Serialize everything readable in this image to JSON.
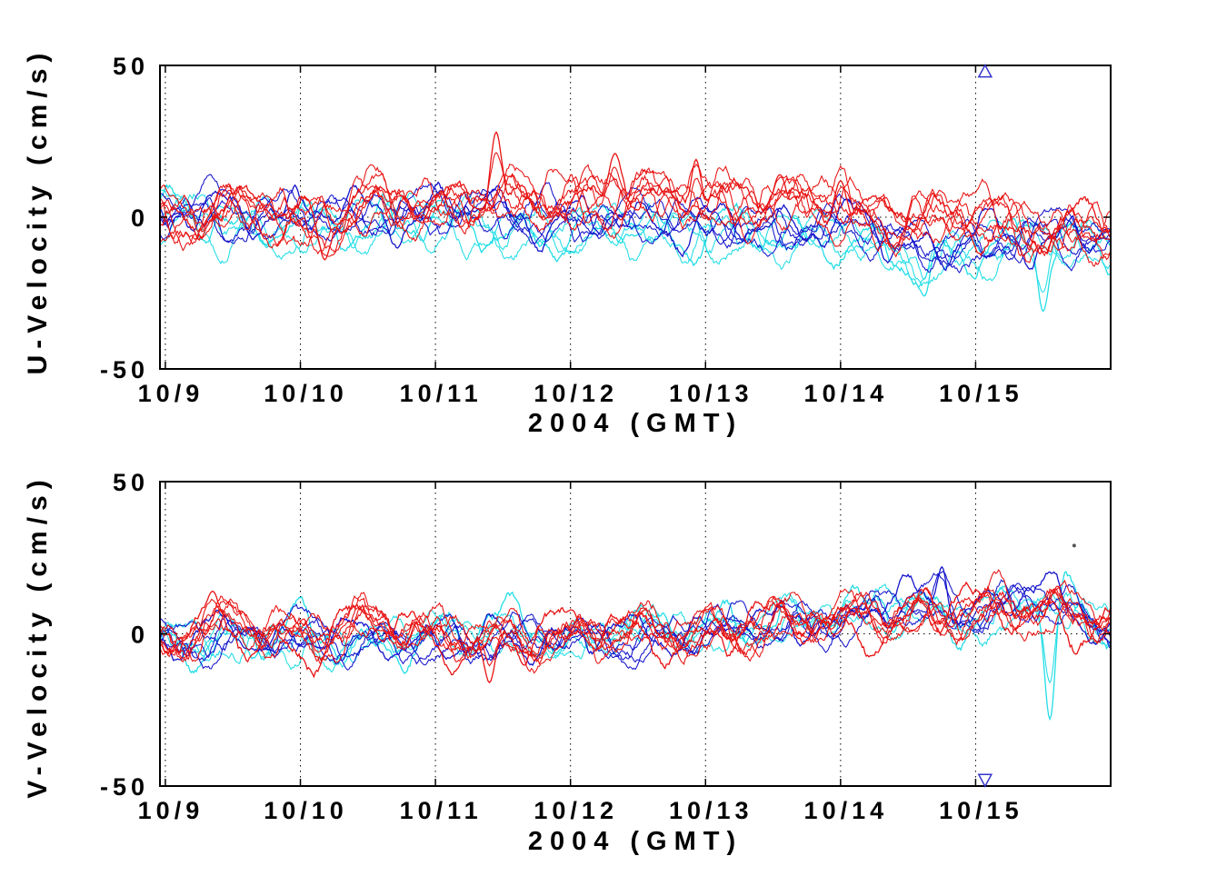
{
  "figure": {
    "background": "#FFFFFF",
    "axis_color": "#000000",
    "text_color": "#000000"
  },
  "chart_data": {
    "note": "two stacked time-series subplots, see charts"
  },
  "charts": [
    {
      "name": "u-velocity",
      "type": "line",
      "title": "",
      "ylabel": "U-Velocity (cm/s)",
      "xlabel": "2004 (GMT)",
      "ylim": [
        -50,
        50
      ],
      "yticks": [
        50,
        0,
        -50
      ],
      "ytick_labels": [
        "50",
        "0",
        "-50"
      ],
      "xtick_days": [
        0,
        1,
        2,
        3,
        4,
        5,
        6
      ],
      "xtick_labels": [
        "10/9",
        "10/10",
        "10/11",
        "10/12",
        "10/13",
        "10/14",
        "10/15"
      ],
      "xlim_days": [
        -0.04,
        7.0
      ],
      "grid": {
        "vertical": "dotted",
        "zero_line": "dotted"
      },
      "sample_step_days": 0.5,
      "series": [
        {
          "name": "cyan-group",
          "color": "#22DDE6",
          "lines": 4,
          "mean_by_halfday": [
            2,
            -2,
            -4,
            -2,
            0,
            -4,
            -6,
            -4,
            -6,
            -6,
            -6,
            -14,
            -10,
            -8,
            -10
          ],
          "tidal_amplitude": 4,
          "noise_amplitude": 3.5,
          "spikes": [
            {
              "day": 5.62,
              "value": -26
            },
            {
              "day": 6.5,
              "value": -31
            }
          ]
        },
        {
          "name": "blue-group",
          "color": "#1414CC",
          "lines": 5,
          "mean_by_halfday": [
            2,
            0,
            2,
            0,
            2,
            2,
            0,
            0,
            -2,
            -2,
            -4,
            -8,
            -8,
            -6,
            -8
          ],
          "tidal_amplitude": 4,
          "noise_amplitude": 3,
          "spikes": []
        },
        {
          "name": "red-group",
          "color": "#E81212",
          "lines": 7,
          "mean_by_halfday": [
            0,
            3,
            -2,
            6,
            2,
            8,
            4,
            8,
            6,
            4,
            4,
            0,
            -2,
            -4,
            -4
          ],
          "tidal_amplitude": 5,
          "noise_amplitude": 4,
          "spikes": [
            {
              "day": 1.18,
              "value": -14
            },
            {
              "day": 2.45,
              "value": 28
            },
            {
              "day": 3.33,
              "value": 21
            },
            {
              "day": 3.93,
              "value": 19
            },
            {
              "day": 4.55,
              "value": 14
            },
            {
              "day": 5.0,
              "value": 12
            }
          ]
        }
      ],
      "markers": [
        {
          "shape": "triangle-up",
          "day": 6.07,
          "value": 48,
          "color": "#3333CC"
        }
      ]
    },
    {
      "name": "v-velocity",
      "type": "line",
      "title": "",
      "ylabel": "V-Velocity (cm/s)",
      "xlabel": "2004 (GMT)",
      "ylim": [
        -50,
        50
      ],
      "yticks": [
        50,
        0,
        -50
      ],
      "ytick_labels": [
        "50",
        "0",
        "-50"
      ],
      "xtick_days": [
        0,
        1,
        2,
        3,
        4,
        5,
        6
      ],
      "xtick_labels": [
        "10/9",
        "10/10",
        "10/11",
        "10/12",
        "10/13",
        "10/14",
        "10/15"
      ],
      "xlim_days": [
        -0.04,
        7.0
      ],
      "grid": {
        "vertical": "dotted",
        "zero_line": "dotted"
      },
      "sample_step_days": 0.5,
      "series": [
        {
          "name": "cyan-group",
          "color": "#22DDE6",
          "lines": 4,
          "mean_by_halfday": [
            -2,
            -4,
            -2,
            -2,
            -2,
            0,
            -2,
            0,
            2,
            6,
            4,
            8,
            6,
            10,
            2
          ],
          "tidal_amplitude": 4,
          "noise_amplitude": 3.5,
          "spikes": [
            {
              "day": 6.55,
              "value": -28
            }
          ]
        },
        {
          "name": "blue-group",
          "color": "#1414CC",
          "lines": 5,
          "mean_by_halfday": [
            -2,
            -2,
            -2,
            -4,
            -2,
            -4,
            -2,
            -2,
            0,
            2,
            4,
            10,
            6,
            12,
            4
          ],
          "tidal_amplitude": 4,
          "noise_amplitude": 3,
          "spikes": [
            {
              "day": 5.75,
              "value": 22
            }
          ]
        },
        {
          "name": "red-group",
          "color": "#E81212",
          "lines": 7,
          "mean_by_halfday": [
            -2,
            2,
            0,
            2,
            0,
            -2,
            0,
            2,
            0,
            4,
            4,
            6,
            8,
            8,
            6
          ],
          "tidal_amplitude": 4,
          "noise_amplitude": 4,
          "spikes": [
            {
              "day": 0.35,
              "value": 14
            },
            {
              "day": 2.4,
              "value": -16
            }
          ]
        }
      ],
      "markers": [
        {
          "shape": "triangle-down",
          "day": 6.07,
          "value": -48,
          "color": "#3333CC"
        },
        {
          "shape": "dot",
          "day": 6.73,
          "value": 29,
          "color": "#555555"
        }
      ]
    }
  ]
}
